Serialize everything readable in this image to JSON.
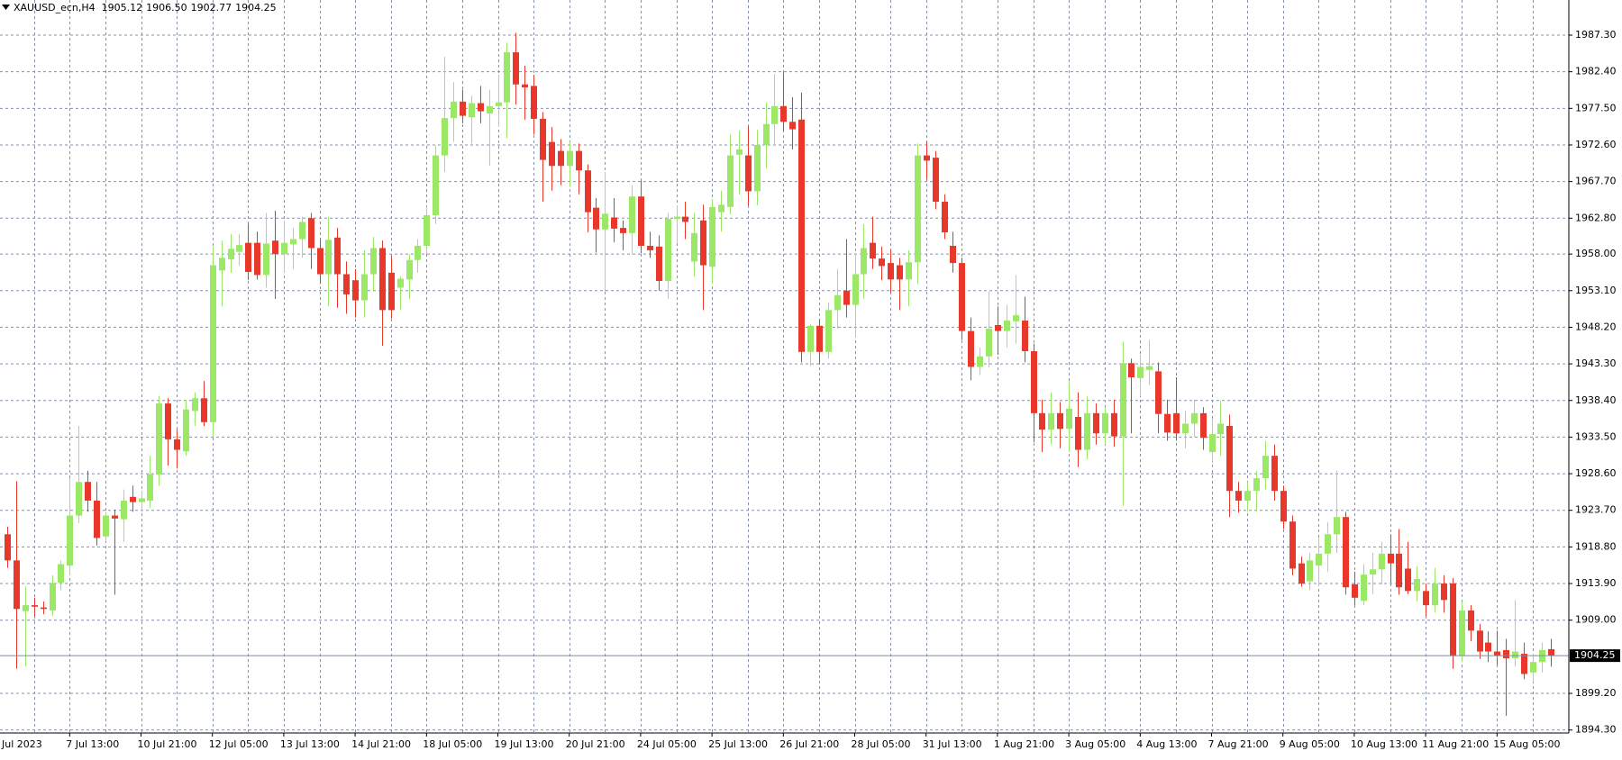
{
  "header": {
    "symbol": "XAUUSD_ecn,H4",
    "ohlc": [
      "1905.12",
      "1906.50",
      "1902.77",
      "1904.25"
    ]
  },
  "chart_data": {
    "type": "candlestick",
    "up_color": "#9ae866",
    "down_color": "#e8382b",
    "grid": true,
    "first_label": "Jul 2023",
    "current_price": {
      "value": 1904.25,
      "label": "1904.25"
    },
    "ylim": [
      1893.9,
      1992.0
    ],
    "yticks": [
      {
        "value": 1894.3,
        "label": "1894.30"
      },
      {
        "value": 1899.2,
        "label": "1899.20"
      },
      {
        "value": 1909,
        "label": "1909.00"
      },
      {
        "value": 1913.9,
        "label": "1913.90"
      },
      {
        "value": 1918.8,
        "label": "1918.80"
      },
      {
        "value": 1923.7,
        "label": "1923.70"
      },
      {
        "value": 1928.6,
        "label": "1928.60"
      },
      {
        "value": 1933.5,
        "label": "1933.50"
      },
      {
        "value": 1938.4,
        "label": "1938.40"
      },
      {
        "value": 1943.3,
        "label": "1943.30"
      },
      {
        "value": 1948.2,
        "label": "1948.20"
      },
      {
        "value": 1953.1,
        "label": "1953.10"
      },
      {
        "value": 1958,
        "label": "1958.00"
      },
      {
        "value": 1962.8,
        "label": "1962.80"
      },
      {
        "value": 1967.7,
        "label": "1967.70"
      },
      {
        "value": 1972.6,
        "label": "1972.60"
      },
      {
        "value": 1977.5,
        "label": "1977.50"
      },
      {
        "value": 1982.4,
        "label": "1982.40"
      },
      {
        "value": 1987.3,
        "label": "1987.30"
      }
    ],
    "categories": [
      null,
      null,
      null,
      null,
      null,
      null,
      null,
      "7 Jul 13:00",
      null,
      null,
      null,
      null,
      null,
      null,
      null,
      "10 Jul 21:00",
      null,
      null,
      null,
      null,
      null,
      null,
      null,
      "12 Jul 05:00",
      null,
      null,
      null,
      null,
      null,
      null,
      null,
      "13 Jul 13:00",
      null,
      null,
      null,
      null,
      null,
      null,
      null,
      "14 Jul 21:00",
      null,
      null,
      null,
      null,
      null,
      null,
      null,
      "18 Jul 05:00",
      null,
      null,
      null,
      null,
      null,
      null,
      null,
      "19 Jul 13:00",
      null,
      null,
      null,
      null,
      null,
      null,
      null,
      "20 Jul 21:00",
      null,
      null,
      null,
      null,
      null,
      null,
      null,
      "24 Jul 05:00",
      null,
      null,
      null,
      null,
      null,
      null,
      null,
      "25 Jul 13:00",
      null,
      null,
      null,
      null,
      null,
      null,
      null,
      "26 Jul 21:00",
      null,
      null,
      null,
      null,
      null,
      null,
      null,
      "28 Jul 05:00",
      null,
      null,
      null,
      null,
      null,
      null,
      null,
      "31 Jul 13:00",
      null,
      null,
      null,
      null,
      null,
      null,
      null,
      "1 Aug 21:00",
      null,
      null,
      null,
      null,
      null,
      null,
      null,
      "3 Aug 05:00",
      null,
      null,
      null,
      null,
      null,
      null,
      null,
      "4 Aug 13:00",
      null,
      null,
      null,
      null,
      null,
      null,
      null,
      "7 Aug 21:00",
      null,
      null,
      null,
      null,
      null,
      null,
      null,
      "9 Aug 05:00",
      null,
      null,
      null,
      null,
      null,
      null,
      null,
      "10 Aug 13:00",
      null,
      null,
      null,
      null,
      null,
      null,
      null,
      "11 Aug 21:00",
      null,
      null,
      null,
      null,
      null,
      null,
      null,
      "15 Aug 05:00",
      null,
      null,
      null,
      null,
      null,
      null
    ],
    "open": [
      1920.5,
      1917,
      1910.2,
      1911,
      1910.7,
      1910.3,
      1914,
      1916.3,
      1923,
      1927.5,
      1925,
      1920.2,
      1923,
      1922.5,
      1925.5,
      1924.8,
      1925,
      1928.5,
      1938,
      1933.2,
      1931.6,
      1937,
      1938.7,
      1935.5,
      1955.8,
      1957.3,
      1958.3,
      1959.5,
      1959.5,
      1955.2,
      1959.8,
      1958,
      1959.3,
      1960,
      1962.8,
      1958.8,
      1955.3,
      1960.2,
      1955.3,
      1954.5,
      1951.8,
      1955.3,
      1958.8,
      1955.5,
      1953.5,
      1954.6,
      1957.2,
      1959.1,
      1963.2,
      1971.2,
      1976.2,
      1978.4,
      1976.3,
      1978.2,
      1976.8,
      1977.8,
      1978.3,
      1985,
      1980.7,
      1980.5,
      1976.1,
      1973,
      1971.8,
      1969.8,
      1971.8,
      1969.2,
      1964.2,
      1961.3,
      1962.9,
      1961.5,
      1960.8,
      1965.7,
      1959.1,
      1959,
      1954.4,
      1962.7,
      1963,
      1957,
      1962.5,
      1956.3,
      1963.6,
      1964.3,
      1971.3,
      1971.2,
      1966.4,
      1972.6,
      1975.4,
      1977.8,
      1975.7,
      1976,
      1944.9,
      1948.4,
      1944.9,
      1950.5,
      1953.1,
      1951.2,
      1955.3,
      1959.5,
      1957.4,
      1956.8,
      1956.5,
      1954.6,
      1956.9,
      1971.2,
      1970.9,
      1965,
      1959.1,
      1956.8,
      1947.7,
      1942.9,
      1944.3,
      1948.5,
      1947.7,
      1949,
      1949.1,
      1945,
      1936.7,
      1934.5,
      1936.7,
      1934.6,
      1936.2,
      1931.8,
      1936.7,
      1934,
      1936.7,
      1933.6,
      1943.4,
      1941.4,
      1942.5,
      1942.3,
      1936.6,
      1936.7,
      1934,
      1935.3,
      1936.7,
      1931.5,
      1933.9,
      1935,
      1926.3,
      1925,
      1926.3,
      1928,
      1931,
      1926.3,
      1922.2,
      1916.6,
      1914.2,
      1916.3,
      1917.9,
      1920.5,
      1922.8,
      1913.8,
      1911.6,
      1915.1,
      1915.8,
      1917.9,
      1917.9,
      1915.9,
      1912.9,
      1912.9,
      1911,
      1913.9,
      1913.9,
      1904.2,
      1910.3,
      1907.6,
      1906,
      1904.8,
      1905,
      1903.9,
      1904.5,
      1902,
      1903.4,
      1905.12
    ],
    "high": [
      1921.5,
      1927.6,
      1913.5,
      1912,
      1911.5,
      1915,
      1917,
      1928,
      1935,
      1929,
      1927.5,
      1923.5,
      1923.8,
      1926.5,
      1927,
      1926.3,
      1931,
      1939,
      1938.7,
      1934.5,
      1938.5,
      1939.5,
      1941,
      1959,
      1959.8,
      1960.7,
      1960.7,
      1962,
      1961,
      1963.5,
      1963.8,
      1962.5,
      1961.5,
      1963,
      1963.5,
      1960,
      1963,
      1961.5,
      1957,
      1956,
      1958.5,
      1960.3,
      1959.8,
      1957.7,
      1955,
      1958,
      1960,
      1964.4,
      1972.5,
      1984.4,
      1981,
      1980,
      1979.2,
      1980.5,
      1980,
      1982,
      1986.3,
      1987.6,
      1983.2,
      1982,
      1977,
      1975,
      1973.4,
      1973,
      1972.8,
      1970,
      1965.5,
      1969,
      1965.5,
      1962.5,
      1967.2,
      1967.8,
      1961,
      1960.5,
      1963.5,
      1964.5,
      1965,
      1963.5,
      1964.6,
      1965.4,
      1966.5,
      1974,
      1974.5,
      1975,
      1974.6,
      1978.3,
      1982.1,
      1982.3,
      1979,
      1979.6,
      1948.6,
      1949.3,
      1951.5,
      1956,
      1960,
      1958,
      1962,
      1963,
      1959,
      1958.5,
      1957.5,
      1958.5,
      1972.8,
      1973,
      1971.8,
      1966,
      1961,
      1957.5,
      1949.5,
      1945.5,
      1953,
      1951,
      1951.2,
      1955.2,
      1952.3,
      1946,
      1938.5,
      1939.5,
      1938.2,
      1941,
      1939.5,
      1939,
      1938,
      1937.5,
      1938.5,
      1946.3,
      1944,
      1944.5,
      1946.5,
      1943.5,
      1938.5,
      1941.5,
      1937,
      1938.5,
      1937.5,
      1936,
      1938.4,
      1936.5,
      1927.5,
      1927.5,
      1929,
      1933,
      1932.5,
      1927,
      1923,
      1917.5,
      1918,
      1920,
      1922.1,
      1929,
      1923.5,
      1915.5,
      1916.5,
      1918,
      1919.5,
      1920.5,
      1921.2,
      1919.5,
      1916.2,
      1913.9,
      1916,
      1915,
      1914.6,
      1911.5,
      1911,
      1908.5,
      1907.5,
      1907.6,
      1906.5,
      1911.7,
      1906,
      1904.5,
      1906,
      1906.5
    ],
    "low": [
      1916,
      1902.5,
      1902.8,
      1909.5,
      1909.8,
      1909.5,
      1913,
      1915,
      1922,
      1923.5,
      1919,
      1919.5,
      1912.4,
      1919.5,
      1923.5,
      1923.5,
      1924,
      1927,
      1929.7,
      1929.3,
      1931,
      1935,
      1935,
      1933.5,
      1951,
      1955.5,
      1956.5,
      1954.5,
      1954.6,
      1953.5,
      1952,
      1955.5,
      1956,
      1957.5,
      1956,
      1954,
      1951,
      1950.8,
      1950,
      1949.5,
      1949.5,
      1953,
      1945.7,
      1949.4,
      1950.5,
      1952,
      1955.5,
      1958,
      1962,
      1969,
      1973,
      1975.5,
      1972.8,
      1975.5,
      1969.8,
      1975,
      1973.5,
      1978,
      1976,
      1974,
      1965,
      1966.5,
      1967.2,
      1967,
      1966,
      1960.9,
      1958.2,
      1953,
      1959.6,
      1958.5,
      1958,
      1958.1,
      1957.5,
      1953.1,
      1952,
      1959.5,
      1960,
      1955,
      1950.5,
      1954,
      1961,
      1963.3,
      1966,
      1964.5,
      1964.5,
      1969.5,
      1972.5,
      1974.5,
      1972,
      1943.5,
      1943,
      1943.3,
      1944,
      1948,
      1949.5,
      1946.8,
      1952,
      1956,
      1954.5,
      1952.8,
      1950.5,
      1951,
      1954,
      1968,
      1964,
      1960,
      1955.5,
      1946.5,
      1941.1,
      1941.8,
      1942.8,
      1944.5,
      1945.5,
      1946,
      1943.5,
      1932.8,
      1931.5,
      1932.5,
      1932,
      1931.5,
      1929.5,
      1930.5,
      1932.5,
      1932.5,
      1932.2,
      1924.3,
      1934,
      1939,
      1940.5,
      1934,
      1933,
      1933,
      1932,
      1933.5,
      1931.8,
      1930,
      1931,
      1922.8,
      1923.4,
      1923.5,
      1923.5,
      1926.5,
      1925,
      1921.2,
      1915,
      1913.5,
      1913,
      1913.5,
      1915.5,
      1918,
      1912.4,
      1911,
      1911,
      1912.5,
      1913.8,
      1914,
      1912.4,
      1912.5,
      1911.5,
      1909.5,
      1910,
      1910,
      1902.5,
      1903.5,
      1906.2,
      1903.8,
      1903.4,
      1903,
      1896.2,
      1902.8,
      1901.1,
      1900.7,
      1902,
      1902.77
    ],
    "close": [
      1917,
      1910.5,
      1911,
      1910.8,
      1910.5,
      1914,
      1916.5,
      1923,
      1927.5,
      1925,
      1920,
      1923,
      1922.6,
      1925,
      1924.8,
      1925.3,
      1928.5,
      1938,
      1933.2,
      1931.8,
      1937.2,
      1938.7,
      1935.5,
      1956.5,
      1957.5,
      1958.7,
      1959.2,
      1955.6,
      1955.2,
      1959.4,
      1958,
      1959.5,
      1960,
      1962.3,
      1958.8,
      1955.3,
      1959.9,
      1955.3,
      1952.6,
      1951.8,
      1955.3,
      1958.8,
      1950.5,
      1950.5,
      1954.7,
      1957.2,
      1959.1,
      1963.2,
      1971.2,
      1976.2,
      1978.4,
      1976.5,
      1978.2,
      1977.1,
      1977.8,
      1978.3,
      1985,
      1980.7,
      1980.3,
      1976.1,
      1970.6,
      1969.8,
      1969.8,
      1971.8,
      1969.2,
      1963.6,
      1961.3,
      1963.4,
      1961.4,
      1960.8,
      1965.7,
      1959.1,
      1958.5,
      1954.4,
      1962.7,
      1963,
      1962.3,
      1960.8,
      1956.5,
      1964.3,
      1964.6,
      1971.2,
      1972,
      1966.4,
      1972.6,
      1975.4,
      1977.8,
      1975.7,
      1974.7,
      1944.9,
      1948.4,
      1944.9,
      1950.5,
      1952.5,
      1951.2,
      1955.3,
      1958.8,
      1957.4,
      1956.4,
      1954.6,
      1954.6,
      1956.9,
      1971.2,
      1970.5,
      1965,
      1960.9,
      1956.8,
      1947.7,
      1942.9,
      1944.3,
      1948,
      1947.7,
      1949.1,
      1949.8,
      1945,
      1936.7,
      1934.5,
      1936.7,
      1934.6,
      1937.3,
      1931.8,
      1936.7,
      1934,
      1936.7,
      1933.6,
      1943.4,
      1941.5,
      1942.9,
      1943,
      1936.6,
      1934.1,
      1934,
      1935.3,
      1936.7,
      1933.4,
      1933.9,
      1935.3,
      1926.3,
      1925,
      1926.3,
      1928,
      1931,
      1926.3,
      1922.2,
      1915.9,
      1913.9,
      1917,
      1917.9,
      1920.5,
      1922.8,
      1913.4,
      1912,
      1915.1,
      1915.8,
      1917.9,
      1916.6,
      1913.4,
      1912.9,
      1914.5,
      1911,
      1913.9,
      1911.7,
      1904.2,
      1910.3,
      1907.6,
      1904.8,
      1904.8,
      1904.2,
      1903.9,
      1904.8,
      1901.8,
      1903.4,
      1905,
      1904.25
    ]
  }
}
